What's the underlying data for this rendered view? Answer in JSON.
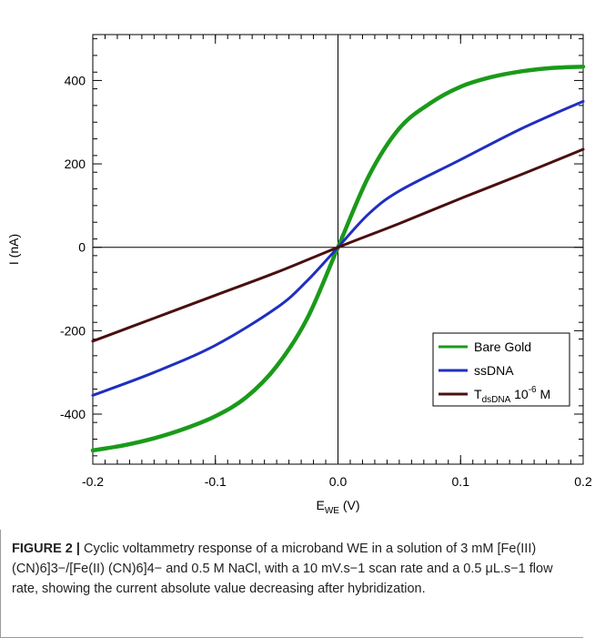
{
  "chart_data": {
    "type": "line",
    "xlabel": "E",
    "xlabel_sub": "WE",
    "xlabel_unit": "(V)",
    "ylabel": "I (nA)",
    "xlim": [
      -0.2,
      0.2
    ],
    "ylim": [
      -520,
      510
    ],
    "x_ticks": [
      -0.2,
      -0.1,
      0.0,
      0.1,
      0.2
    ],
    "x_tick_labels": [
      "-0.2",
      "-0.1",
      "0.0",
      "0.1",
      "0.2"
    ],
    "y_ticks": [
      400,
      200,
      0,
      -200,
      -400
    ],
    "y_tick_labels": [
      "400",
      "200",
      "0",
      "-200",
      "-400"
    ],
    "grid": false,
    "legend_position": "bottom-right",
    "series": [
      {
        "name": "Bare Gold",
        "color": "#1a9a1a",
        "x": [
          -0.2,
          -0.175,
          -0.15,
          -0.125,
          -0.1,
          -0.075,
          -0.05,
          -0.025,
          0.0,
          0.025,
          0.05,
          0.075,
          0.1,
          0.125,
          0.15,
          0.175,
          0.2
        ],
        "y": [
          -487,
          -475,
          -458,
          -435,
          -405,
          -360,
          -285,
          -170,
          0,
          170,
          285,
          345,
          385,
          408,
          422,
          430,
          433
        ]
      },
      {
        "name": "ssDNA",
        "color": "#1f2fc0",
        "x": [
          -0.2,
          -0.15,
          -0.1,
          -0.05,
          -0.025,
          0.0,
          0.025,
          0.05,
          0.1,
          0.15,
          0.2
        ],
        "y": [
          -355,
          -300,
          -235,
          -145,
          -80,
          0,
          80,
          135,
          210,
          285,
          350
        ]
      },
      {
        "name": "T",
        "name_sub": "dsDNA",
        "name_suffix": "10",
        "name_sup": "-6",
        "name_unit": "M",
        "color": "#4a0f0f",
        "x": [
          -0.2,
          -0.15,
          -0.1,
          -0.05,
          0.0,
          0.05,
          0.1,
          0.15,
          0.2
        ],
        "y": [
          -225,
          -170,
          -115,
          -60,
          0,
          57,
          117,
          175,
          235
        ]
      }
    ]
  },
  "caption": {
    "label": "FIGURE 2 |",
    "text": " Cyclic voltammetry response of a microband WE in a solution of 3 mM [Fe(III) (CN)6]3−/[Fe(II) (CN)6]4− and 0.5 M NaCl, with a 10 mV.s−1 scan rate and a 0.5 μL.s−1 flow rate, showing the current absolute value decreasing after hybridization."
  }
}
